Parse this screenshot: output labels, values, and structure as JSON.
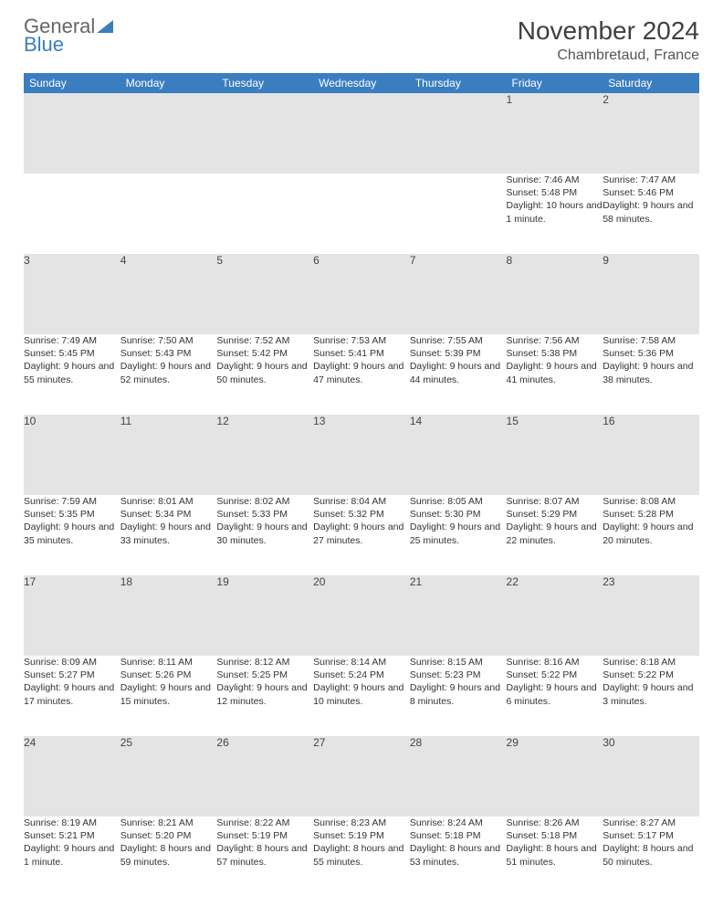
{
  "logo": {
    "line1": "General",
    "line2": "Blue"
  },
  "title": "November 2024",
  "location": "Chambretaud, France",
  "header_bg": "#3a7ebf",
  "daynum_bg": "#e4e4e4",
  "weekdays": [
    "Sunday",
    "Monday",
    "Tuesday",
    "Wednesday",
    "Thursday",
    "Friday",
    "Saturday"
  ],
  "weeks": [
    [
      null,
      null,
      null,
      null,
      null,
      {
        "d": "1",
        "sr": "Sunrise: 7:46 AM",
        "ss": "Sunset: 5:48 PM",
        "dl": "Daylight: 10 hours and 1 minute."
      },
      {
        "d": "2",
        "sr": "Sunrise: 7:47 AM",
        "ss": "Sunset: 5:46 PM",
        "dl": "Daylight: 9 hours and 58 minutes."
      }
    ],
    [
      {
        "d": "3",
        "sr": "Sunrise: 7:49 AM",
        "ss": "Sunset: 5:45 PM",
        "dl": "Daylight: 9 hours and 55 minutes."
      },
      {
        "d": "4",
        "sr": "Sunrise: 7:50 AM",
        "ss": "Sunset: 5:43 PM",
        "dl": "Daylight: 9 hours and 52 minutes."
      },
      {
        "d": "5",
        "sr": "Sunrise: 7:52 AM",
        "ss": "Sunset: 5:42 PM",
        "dl": "Daylight: 9 hours and 50 minutes."
      },
      {
        "d": "6",
        "sr": "Sunrise: 7:53 AM",
        "ss": "Sunset: 5:41 PM",
        "dl": "Daylight: 9 hours and 47 minutes."
      },
      {
        "d": "7",
        "sr": "Sunrise: 7:55 AM",
        "ss": "Sunset: 5:39 PM",
        "dl": "Daylight: 9 hours and 44 minutes."
      },
      {
        "d": "8",
        "sr": "Sunrise: 7:56 AM",
        "ss": "Sunset: 5:38 PM",
        "dl": "Daylight: 9 hours and 41 minutes."
      },
      {
        "d": "9",
        "sr": "Sunrise: 7:58 AM",
        "ss": "Sunset: 5:36 PM",
        "dl": "Daylight: 9 hours and 38 minutes."
      }
    ],
    [
      {
        "d": "10",
        "sr": "Sunrise: 7:59 AM",
        "ss": "Sunset: 5:35 PM",
        "dl": "Daylight: 9 hours and 35 minutes."
      },
      {
        "d": "11",
        "sr": "Sunrise: 8:01 AM",
        "ss": "Sunset: 5:34 PM",
        "dl": "Daylight: 9 hours and 33 minutes."
      },
      {
        "d": "12",
        "sr": "Sunrise: 8:02 AM",
        "ss": "Sunset: 5:33 PM",
        "dl": "Daylight: 9 hours and 30 minutes."
      },
      {
        "d": "13",
        "sr": "Sunrise: 8:04 AM",
        "ss": "Sunset: 5:32 PM",
        "dl": "Daylight: 9 hours and 27 minutes."
      },
      {
        "d": "14",
        "sr": "Sunrise: 8:05 AM",
        "ss": "Sunset: 5:30 PM",
        "dl": "Daylight: 9 hours and 25 minutes."
      },
      {
        "d": "15",
        "sr": "Sunrise: 8:07 AM",
        "ss": "Sunset: 5:29 PM",
        "dl": "Daylight: 9 hours and 22 minutes."
      },
      {
        "d": "16",
        "sr": "Sunrise: 8:08 AM",
        "ss": "Sunset: 5:28 PM",
        "dl": "Daylight: 9 hours and 20 minutes."
      }
    ],
    [
      {
        "d": "17",
        "sr": "Sunrise: 8:09 AM",
        "ss": "Sunset: 5:27 PM",
        "dl": "Daylight: 9 hours and 17 minutes."
      },
      {
        "d": "18",
        "sr": "Sunrise: 8:11 AM",
        "ss": "Sunset: 5:26 PM",
        "dl": "Daylight: 9 hours and 15 minutes."
      },
      {
        "d": "19",
        "sr": "Sunrise: 8:12 AM",
        "ss": "Sunset: 5:25 PM",
        "dl": "Daylight: 9 hours and 12 minutes."
      },
      {
        "d": "20",
        "sr": "Sunrise: 8:14 AM",
        "ss": "Sunset: 5:24 PM",
        "dl": "Daylight: 9 hours and 10 minutes."
      },
      {
        "d": "21",
        "sr": "Sunrise: 8:15 AM",
        "ss": "Sunset: 5:23 PM",
        "dl": "Daylight: 9 hours and 8 minutes."
      },
      {
        "d": "22",
        "sr": "Sunrise: 8:16 AM",
        "ss": "Sunset: 5:22 PM",
        "dl": "Daylight: 9 hours and 6 minutes."
      },
      {
        "d": "23",
        "sr": "Sunrise: 8:18 AM",
        "ss": "Sunset: 5:22 PM",
        "dl": "Daylight: 9 hours and 3 minutes."
      }
    ],
    [
      {
        "d": "24",
        "sr": "Sunrise: 8:19 AM",
        "ss": "Sunset: 5:21 PM",
        "dl": "Daylight: 9 hours and 1 minute."
      },
      {
        "d": "25",
        "sr": "Sunrise: 8:21 AM",
        "ss": "Sunset: 5:20 PM",
        "dl": "Daylight: 8 hours and 59 minutes."
      },
      {
        "d": "26",
        "sr": "Sunrise: 8:22 AM",
        "ss": "Sunset: 5:19 PM",
        "dl": "Daylight: 8 hours and 57 minutes."
      },
      {
        "d": "27",
        "sr": "Sunrise: 8:23 AM",
        "ss": "Sunset: 5:19 PM",
        "dl": "Daylight: 8 hours and 55 minutes."
      },
      {
        "d": "28",
        "sr": "Sunrise: 8:24 AM",
        "ss": "Sunset: 5:18 PM",
        "dl": "Daylight: 8 hours and 53 minutes."
      },
      {
        "d": "29",
        "sr": "Sunrise: 8:26 AM",
        "ss": "Sunset: 5:18 PM",
        "dl": "Daylight: 8 hours and 51 minutes."
      },
      {
        "d": "30",
        "sr": "Sunrise: 8:27 AM",
        "ss": "Sunset: 5:17 PM",
        "dl": "Daylight: 8 hours and 50 minutes."
      }
    ]
  ]
}
